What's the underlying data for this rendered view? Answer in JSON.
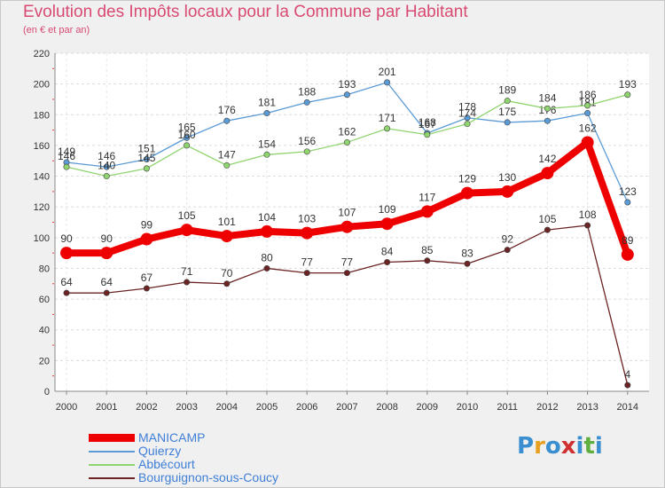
{
  "header": {
    "title": "Evolution des Impôts locaux pour la Commune par Habitant",
    "subtitle": "(en € et par an)"
  },
  "logo": {
    "text": "Proxiti",
    "letters": [
      "P",
      "r",
      "o",
      "x",
      "i",
      "t",
      "i"
    ],
    "colors": [
      "#3a8fd0",
      "#e8a020",
      "#3a8fd0",
      "#d03030",
      "#3a8fd0",
      "#60b040",
      "#3a8fd0"
    ]
  },
  "chart_data": {
    "type": "line",
    "title": "Evolution des Impôts locaux pour la Commune par Habitant",
    "subtitle": "(en € et par an)",
    "xlabel": "",
    "ylabel": "",
    "ylim": [
      0,
      220
    ],
    "yticks": [
      0,
      20,
      40,
      60,
      80,
      100,
      120,
      140,
      160,
      180,
      200,
      220
    ],
    "grid": true,
    "legend_position": "bottom-left",
    "x": [
      "2000",
      "2001",
      "2002",
      "2003",
      "2004",
      "2005",
      "2006",
      "2007",
      "2008",
      "2009",
      "2010",
      "2011",
      "2012",
      "2013",
      "2014"
    ],
    "series": [
      {
        "name": "MANICAMP",
        "color": "#ee0000",
        "values": [
          90,
          90,
          99,
          105,
          101,
          104,
          103,
          107,
          109,
          117,
          129,
          130,
          142,
          162,
          89
        ]
      },
      {
        "name": "Quierzy",
        "color": "#5b9bd5",
        "values": [
          149,
          146,
          151,
          165,
          176,
          181,
          188,
          193,
          201,
          168,
          178,
          175,
          176,
          181,
          123
        ]
      },
      {
        "name": "Abbécourt",
        "color": "#8fd46f",
        "values": [
          146,
          140,
          145,
          160,
          147,
          154,
          156,
          162,
          171,
          167,
          174,
          189,
          184,
          186,
          193
        ]
      },
      {
        "name": "Bourguignon-sous-Coucy",
        "color": "#6b2323",
        "values": [
          64,
          64,
          67,
          71,
          70,
          80,
          77,
          77,
          84,
          85,
          83,
          92,
          105,
          108,
          4
        ]
      }
    ]
  }
}
